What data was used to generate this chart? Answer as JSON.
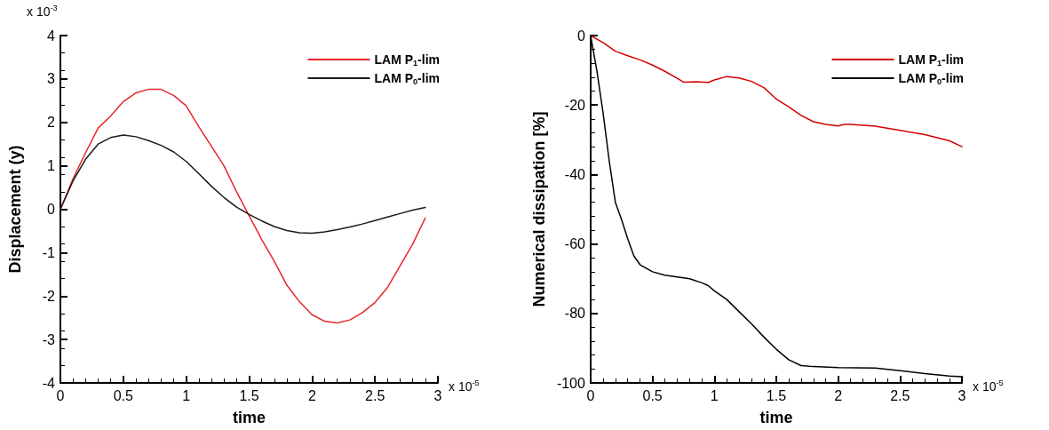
{
  "chart_data": [
    {
      "type": "line",
      "xlabel": "time",
      "ylabel": "Displacement (y)",
      "x": [
        0,
        0.1,
        0.2,
        0.3,
        0.4,
        0.5,
        0.6,
        0.7,
        0.8,
        0.9,
        1.0,
        1.1,
        1.2,
        1.3,
        1.4,
        1.5,
        1.6,
        1.7,
        1.8,
        1.9,
        2.0,
        2.1,
        2.2,
        2.3,
        2.4,
        2.5,
        2.6,
        2.7,
        2.8,
        2.9
      ],
      "series": [
        {
          "name": "LAM P$_{1}$-lim",
          "color": "#e8262b",
          "values": [
            0,
            0.7,
            1.3,
            1.87,
            2.15,
            2.48,
            2.68,
            2.76,
            2.76,
            2.62,
            2.38,
            1.9,
            1.45,
            1.0,
            0.4,
            -0.15,
            -0.7,
            -1.2,
            -1.75,
            -2.13,
            -2.43,
            -2.58,
            -2.62,
            -2.55,
            -2.38,
            -2.15,
            -1.8,
            -1.3,
            -0.8,
            -0.2
          ]
        },
        {
          "name": "LAM P$_{0}$-lim",
          "color": "#1a1a1a",
          "values": [
            0,
            0.65,
            1.15,
            1.5,
            1.65,
            1.71,
            1.67,
            1.58,
            1.47,
            1.32,
            1.1,
            0.82,
            0.53,
            0.27,
            0.05,
            -0.12,
            -0.27,
            -0.4,
            -0.49,
            -0.54,
            -0.55,
            -0.52,
            -0.47,
            -0.41,
            -0.34,
            -0.26,
            -0.18,
            -0.1,
            -0.02,
            0.04
          ]
        }
      ],
      "xlim": [
        0,
        3
      ],
      "xticks": [
        0,
        0.5,
        1,
        1.5,
        2,
        2.5,
        3
      ],
      "ylim": [
        -4,
        4
      ],
      "yticks": [
        -4,
        -3,
        -2,
        -1,
        0,
        1,
        2,
        3,
        4
      ],
      "grid": false,
      "legend": "top right",
      "marker": "none",
      "line_style": "solid",
      "annotations": [
        "x 10$^{-3}$",
        "x 10$^{-5}$"
      ]
    },
    {
      "type": "line",
      "xlabel": "time",
      "ylabel": "Numerical dissipation [%]",
      "series": [
        {
          "name": "LAM P$_{1}$-lim",
          "color": "#d40000",
          "x": [
            0,
            0.1,
            0.2,
            0.3,
            0.4,
            0.5,
            0.6,
            0.7,
            0.75,
            0.85,
            0.95,
            1.0,
            1.1,
            1.2,
            1.3,
            1.4,
            1.5,
            1.6,
            1.7,
            1.8,
            1.9,
            2.0,
            2.05,
            2.1,
            2.3,
            2.5,
            2.7,
            2.9,
            3.0
          ],
          "values": [
            0,
            -2,
            -4.5,
            -5.8,
            -7,
            -8.5,
            -10.3,
            -12.3,
            -13.4,
            -13.3,
            -13.5,
            -12.8,
            -11.8,
            -12.2,
            -13.2,
            -15,
            -18.3,
            -20.5,
            -23,
            -24.8,
            -25.6,
            -26,
            -25.6,
            -25.6,
            -26.1,
            -27.3,
            -28.5,
            -30.3,
            -32
          ]
        },
        {
          "name": "LAM P$_{0}$-lim",
          "color": "#000000",
          "x": [
            0,
            0.05,
            0.1,
            0.15,
            0.2,
            0.25,
            0.3,
            0.35,
            0.4,
            0.5,
            0.6,
            0.7,
            0.8,
            0.9,
            0.95,
            1.0,
            1.1,
            1.2,
            1.3,
            1.4,
            1.5,
            1.6,
            1.7,
            1.8,
            2.0,
            2.3,
            2.5,
            2.7,
            2.9,
            3.0
          ],
          "values": [
            0,
            -10,
            -22,
            -36,
            -48,
            -53,
            -58.5,
            -63.5,
            -66,
            -68,
            -69,
            -69.5,
            -70,
            -71.2,
            -72,
            -73.5,
            -76,
            -79.5,
            -83,
            -86.8,
            -90.3,
            -93.3,
            -95,
            -95.3,
            -95.6,
            -95.7,
            -96.5,
            -97.3,
            -98,
            -98.2
          ]
        }
      ],
      "xlim": [
        0,
        3
      ],
      "xticks": [
        0,
        0.5,
        1,
        1.5,
        2,
        2.5,
        3
      ],
      "ylim": [
        -100,
        0
      ],
      "yticks": [
        -100,
        -80,
        -60,
        -40,
        -20,
        0
      ],
      "grid": false,
      "legend": "top right",
      "marker": "none",
      "line_style": "solid",
      "annotations": [
        "x 10$^{-5}$"
      ]
    }
  ]
}
